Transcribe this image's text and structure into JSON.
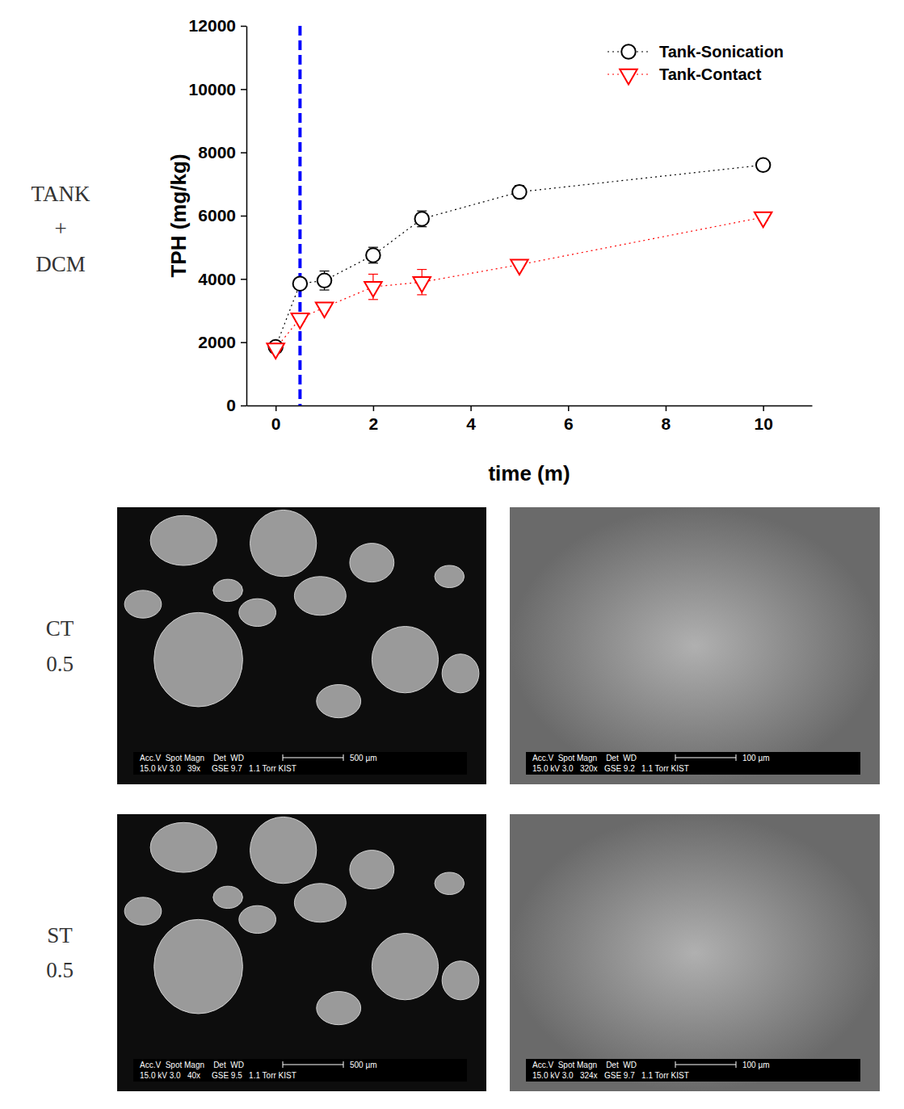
{
  "chart_data": {
    "type": "scatter",
    "x_label": "time (m)",
    "y_label": "TPH (mg/kg)",
    "x": [
      0,
      0.5,
      1,
      2,
      3,
      5,
      10
    ],
    "xlim": [
      -0.6,
      11
    ],
    "xticks": [
      0,
      2,
      4,
      6,
      8,
      10
    ],
    "ylim": [
      0,
      12000
    ],
    "yticks": [
      0,
      2000,
      4000,
      6000,
      8000,
      10000,
      12000
    ],
    "grid": false,
    "legend": "top-right",
    "series": [
      {
        "name": "Tank-Sonication",
        "color": "#000000",
        "marker": "circle",
        "line_style": "dotted",
        "values": [
          1850,
          3850,
          3950,
          4750,
          5900,
          6750,
          7600
        ],
        "errors": [
          150,
          150,
          300,
          250,
          250,
          200,
          150
        ]
      },
      {
        "name": "Tank-Contact",
        "color": "#ff0000",
        "marker": "triangle-down",
        "line_style": "dotted",
        "values": [
          1800,
          2750,
          3100,
          3750,
          3900,
          4450,
          5950
        ],
        "errors": [
          100,
          100,
          100,
          400,
          400,
          100,
          100
        ]
      }
    ],
    "reference_line": {
      "x": 0.5,
      "color": "#0000ff",
      "line_style": "dashed"
    }
  },
  "row_labels": {
    "chart": [
      "TANK",
      "+",
      "DCM"
    ],
    "ct": [
      "CT",
      "0.5"
    ],
    "st": [
      "ST",
      "0.5"
    ]
  },
  "sem_images": [
    {
      "row": "ct",
      "info_header": "Acc.V  Spot Magn    Det  WD",
      "info_values": "15.0 kV 3.0   39x     GSE 9.7   1.1 Torr KIST",
      "scale_label": "500 µm"
    },
    {
      "row": "ct",
      "info_header": "Acc.V  Spot Magn    Det  WD",
      "info_values": "15.0 kV 3.0   320x   GSE 9.2   1.1 Torr KIST",
      "scale_label": "100 µm"
    },
    {
      "row": "st",
      "info_header": "Acc.V  Spot Magn    Det  WD",
      "info_values": "15.0 kV 3.0   40x     GSE 9.5   1.1 Torr KIST",
      "scale_label": "500 µm"
    },
    {
      "row": "st",
      "info_header": "Acc.V  Spot Magn    Det  WD",
      "info_values": "15.0 kV 3.0   324x   GSE 9.7   1.1 Torr KIST",
      "scale_label": "100 µm"
    }
  ]
}
